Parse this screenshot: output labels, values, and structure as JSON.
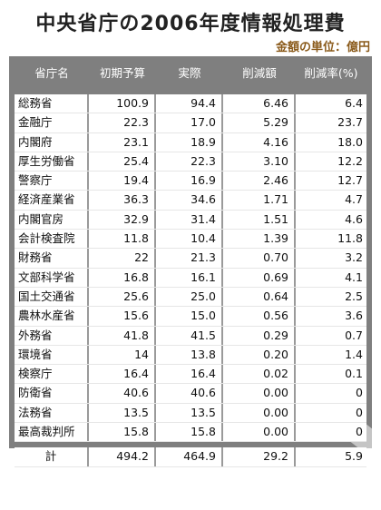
{
  "title": "中央省庁の2006年度情報処理費",
  "unit_note": "金額の単位：億円",
  "chart_data": {
    "type": "table",
    "columns": [
      "省庁名",
      "初期予算",
      "実際",
      "削減額",
      "削減率(%)"
    ],
    "rows": [
      [
        "総務省",
        "100.9",
        "94.4",
        "6.46",
        "6.4"
      ],
      [
        "金融庁",
        "22.3",
        "17.0",
        "5.29",
        "23.7"
      ],
      [
        "内閣府",
        "23.1",
        "18.9",
        "4.16",
        "18.0"
      ],
      [
        "厚生労働省",
        "25.4",
        "22.3",
        "3.10",
        "12.2"
      ],
      [
        "警察庁",
        "19.4",
        "16.9",
        "2.46",
        "12.7"
      ],
      [
        "経済産業省",
        "36.3",
        "34.6",
        "1.71",
        "4.7"
      ],
      [
        "内閣官房",
        "32.9",
        "31.4",
        "1.51",
        "4.6"
      ],
      [
        "会計検査院",
        "11.8",
        "10.4",
        "1.39",
        "11.8"
      ],
      [
        "財務省",
        "22",
        "21.3",
        "0.70",
        "3.2"
      ],
      [
        "文部科学省",
        "16.8",
        "16.1",
        "0.69",
        "4.1"
      ],
      [
        "国土交通省",
        "25.6",
        "25.0",
        "0.64",
        "2.5"
      ],
      [
        "農林水産省",
        "15.6",
        "15.0",
        "0.56",
        "3.6"
      ],
      [
        "外務省",
        "41.8",
        "41.5",
        "0.29",
        "0.7"
      ],
      [
        "環境省",
        "14",
        "13.8",
        "0.20",
        "1.4"
      ],
      [
        "検察庁",
        "16.4",
        "16.4",
        "0.02",
        "0.1"
      ],
      [
        "防衛省",
        "40.6",
        "40.6",
        "0.00",
        "0"
      ],
      [
        "法務省",
        "13.5",
        "13.5",
        "0.00",
        "0"
      ],
      [
        "最高裁判所",
        "15.8",
        "15.8",
        "0.00",
        "0"
      ]
    ],
    "total": [
      "計",
      "494.2",
      "464.9",
      "29.2",
      "5.9"
    ]
  },
  "colors": {
    "panel": "#7f7f7f",
    "header_text": "#ffffff",
    "unit_note": "#8a5a1a"
  }
}
